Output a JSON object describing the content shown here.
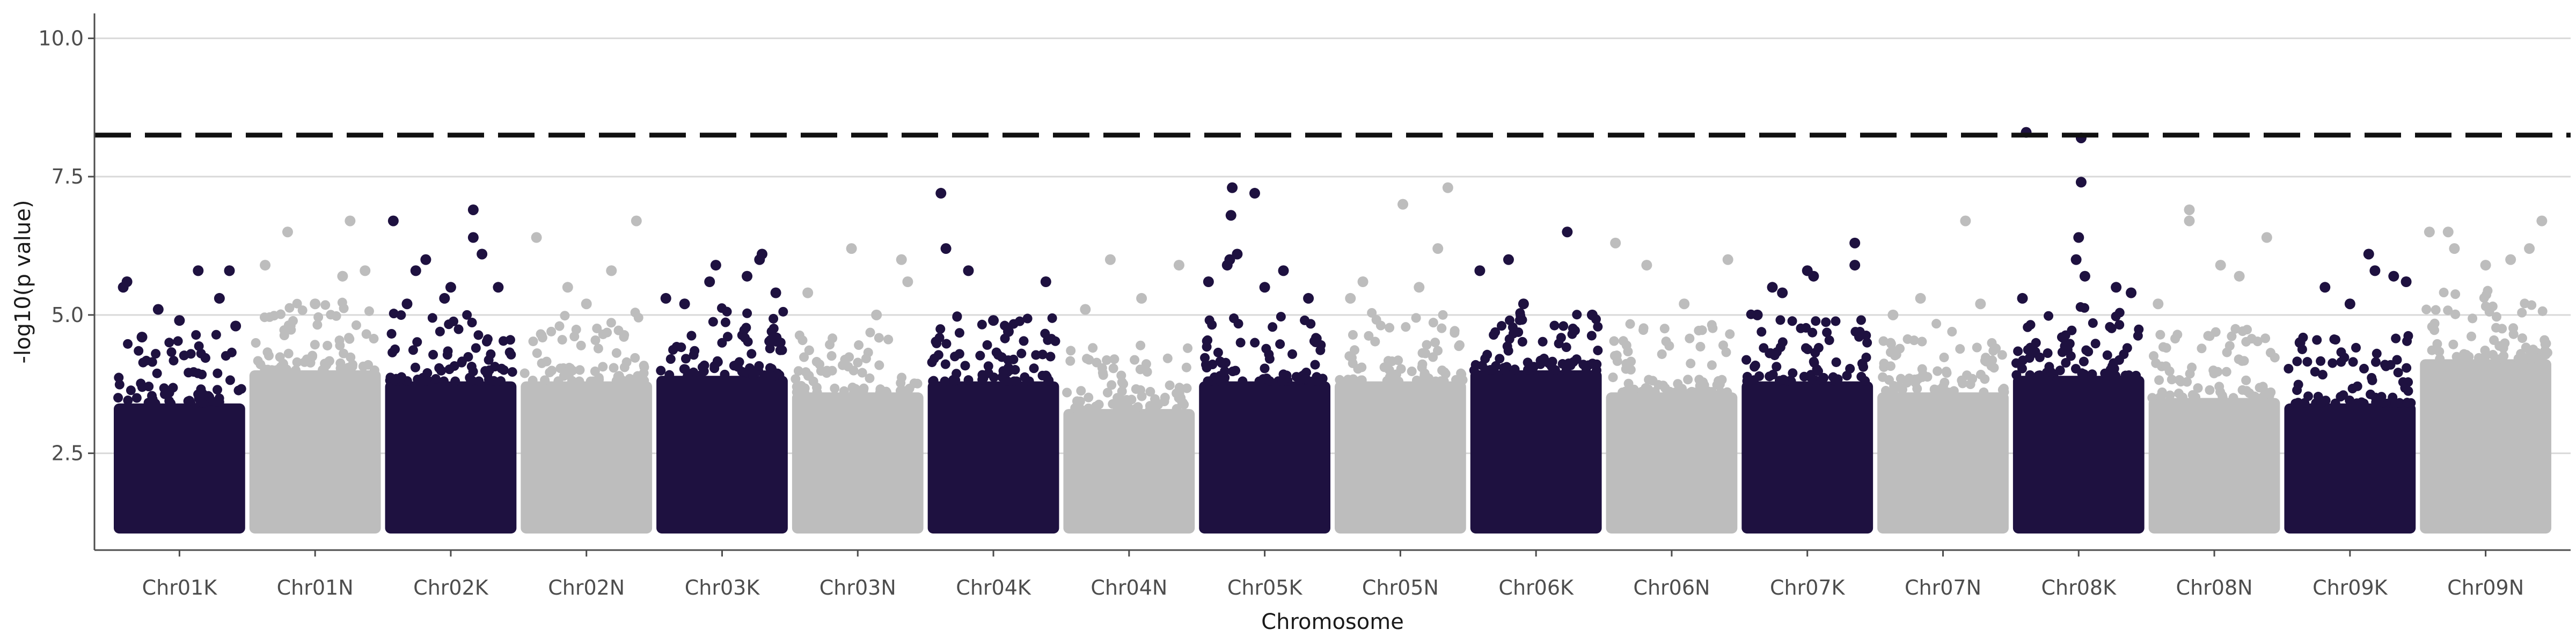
{
  "chart_data": {
    "type": "scatter",
    "subtype": "manhattan",
    "title": "",
    "xlabel": "Chromosome",
    "ylabel": "-log10(p value)",
    "ylim": [
      0.75,
      10.45
    ],
    "yticks": [
      2.5,
      5.0,
      7.5,
      10.0
    ],
    "ytick_labels": [
      "2.5",
      "5.0",
      "7.5",
      "10.0"
    ],
    "grid": "horizontal major",
    "legend": "none",
    "significance_threshold": 8.25,
    "colors": {
      "dark": "#1e1140",
      "light": "#bdbdbd",
      "threshold": "#111111",
      "grid": "#d9d9d9",
      "axis": "#4d4d4d"
    },
    "categories": [
      "Chr01K",
      "Chr01N",
      "Chr02K",
      "Chr02N",
      "Chr03K",
      "Chr03N",
      "Chr04K",
      "Chr04N",
      "Chr05K",
      "Chr05N",
      "Chr06K",
      "Chr06N",
      "Chr07K",
      "Chr07N",
      "Chr08K",
      "Chr08N",
      "Chr09K",
      "Chr09N"
    ],
    "series": [
      {
        "chromosome": "Chr01K",
        "color": "dark",
        "dense_top": 3.4,
        "outliers": [
          [
            0.05,
            5.5
          ],
          [
            0.08,
            5.6
          ],
          [
            0.2,
            4.6
          ],
          [
            0.33,
            5.1
          ],
          [
            0.5,
            4.9
          ],
          [
            0.65,
            5.8
          ],
          [
            0.82,
            5.3
          ],
          [
            0.9,
            5.8
          ],
          [
            0.95,
            4.8
          ]
        ]
      },
      {
        "chromosome": "Chr01N",
        "color": "light",
        "dense_top": 4.0,
        "outliers": [
          [
            0.1,
            5.9
          ],
          [
            0.28,
            6.5
          ],
          [
            0.5,
            5.2
          ],
          [
            0.72,
            5.7
          ],
          [
            0.78,
            6.7
          ],
          [
            0.9,
            5.8
          ]
        ]
      },
      {
        "chromosome": "Chr02K",
        "color": "dark",
        "dense_top": 3.8,
        "outliers": [
          [
            0.04,
            6.7
          ],
          [
            0.15,
            5.2
          ],
          [
            0.22,
            5.8
          ],
          [
            0.3,
            6.0
          ],
          [
            0.45,
            5.3
          ],
          [
            0.5,
            5.5
          ],
          [
            0.68,
            6.9
          ],
          [
            0.68,
            6.4
          ],
          [
            0.75,
            6.1
          ],
          [
            0.88,
            5.5
          ]
        ]
      },
      {
        "chromosome": "Chr02N",
        "color": "light",
        "dense_top": 3.8,
        "outliers": [
          [
            0.1,
            6.4
          ],
          [
            0.35,
            5.5
          ],
          [
            0.5,
            5.2
          ],
          [
            0.7,
            5.8
          ],
          [
            0.9,
            6.7
          ]
        ]
      },
      {
        "chromosome": "Chr03K",
        "color": "dark",
        "dense_top": 3.9,
        "outliers": [
          [
            0.05,
            5.3
          ],
          [
            0.2,
            5.2
          ],
          [
            0.4,
            5.6
          ],
          [
            0.45,
            5.9
          ],
          [
            0.7,
            5.7
          ],
          [
            0.8,
            6.0
          ],
          [
            0.82,
            6.1
          ],
          [
            0.93,
            5.4
          ]
        ]
      },
      {
        "chromosome": "Chr03N",
        "color": "light",
        "dense_top": 3.6,
        "outliers": [
          [
            0.1,
            5.4
          ],
          [
            0.45,
            6.2
          ],
          [
            0.65,
            5.0
          ],
          [
            0.85,
            6.0
          ],
          [
            0.9,
            5.6
          ]
        ]
      },
      {
        "chromosome": "Chr04K",
        "color": "dark",
        "dense_top": 3.8,
        "outliers": [
          [
            0.08,
            7.2
          ],
          [
            0.12,
            6.2
          ],
          [
            0.3,
            5.8
          ],
          [
            0.5,
            4.9
          ],
          [
            0.62,
            4.7
          ],
          [
            0.92,
            5.6
          ]
        ]
      },
      {
        "chromosome": "Chr04N",
        "color": "light",
        "dense_top": 3.3,
        "outliers": [
          [
            0.15,
            5.1
          ],
          [
            0.35,
            6.0
          ],
          [
            0.6,
            5.3
          ],
          [
            0.9,
            5.9
          ]
        ]
      },
      {
        "chromosome": "Chr05K",
        "color": "dark",
        "dense_top": 3.8,
        "outliers": [
          [
            0.05,
            5.6
          ],
          [
            0.2,
            5.9
          ],
          [
            0.22,
            6.0
          ],
          [
            0.23,
            6.8
          ],
          [
            0.24,
            7.3
          ],
          [
            0.28,
            6.1
          ],
          [
            0.42,
            7.2
          ],
          [
            0.5,
            5.5
          ],
          [
            0.65,
            5.8
          ],
          [
            0.85,
            5.3
          ]
        ]
      },
      {
        "chromosome": "Chr05N",
        "color": "light",
        "dense_top": 3.8,
        "outliers": [
          [
            0.1,
            5.3
          ],
          [
            0.2,
            5.6
          ],
          [
            0.52,
            7.0
          ],
          [
            0.65,
            5.5
          ],
          [
            0.8,
            6.2
          ],
          [
            0.88,
            7.3
          ]
        ]
      },
      {
        "chromosome": "Chr06K",
        "color": "dark",
        "dense_top": 4.0,
        "outliers": [
          [
            0.05,
            5.8
          ],
          [
            0.28,
            6.0
          ],
          [
            0.4,
            5.2
          ],
          [
            0.75,
            6.5
          ],
          [
            0.95,
            5.0
          ]
        ]
      },
      {
        "chromosome": "Chr06N",
        "color": "light",
        "dense_top": 3.6,
        "outliers": [
          [
            0.05,
            6.3
          ],
          [
            0.3,
            5.9
          ],
          [
            0.6,
            5.2
          ],
          [
            0.95,
            6.0
          ]
        ]
      },
      {
        "chromosome": "Chr07K",
        "color": "dark",
        "dense_top": 3.8,
        "outliers": [
          [
            0.1,
            5.0
          ],
          [
            0.22,
            5.5
          ],
          [
            0.3,
            5.4
          ],
          [
            0.5,
            5.8
          ],
          [
            0.55,
            5.7
          ],
          [
            0.88,
            6.3
          ],
          [
            0.88,
            5.9
          ]
        ]
      },
      {
        "chromosome": "Chr07N",
        "color": "light",
        "dense_top": 3.6,
        "outliers": [
          [
            0.1,
            5.0
          ],
          [
            0.32,
            5.3
          ],
          [
            0.68,
            6.7
          ],
          [
            0.8,
            5.2
          ]
        ]
      },
      {
        "chromosome": "Chr08K",
        "color": "dark",
        "dense_top": 3.9,
        "outliers": [
          [
            0.05,
            5.3
          ],
          [
            0.08,
            8.3
          ],
          [
            0.52,
            8.2
          ],
          [
            0.52,
            7.4
          ],
          [
            0.5,
            6.4
          ],
          [
            0.48,
            6.0
          ],
          [
            0.55,
            5.7
          ],
          [
            0.8,
            5.5
          ],
          [
            0.92,
            5.4
          ]
        ]
      },
      {
        "chromosome": "Chr08N",
        "color": "light",
        "dense_top": 3.5,
        "outliers": [
          [
            0.05,
            5.2
          ],
          [
            0.3,
            6.9
          ],
          [
            0.3,
            6.7
          ],
          [
            0.55,
            5.9
          ],
          [
            0.7,
            5.7
          ],
          [
            0.92,
            6.4
          ]
        ]
      },
      {
        "chromosome": "Chr09K",
        "color": "dark",
        "dense_top": 3.4,
        "outliers": [
          [
            0.1,
            4.5
          ],
          [
            0.3,
            5.5
          ],
          [
            0.5,
            5.2
          ],
          [
            0.65,
            6.1
          ],
          [
            0.7,
            5.8
          ],
          [
            0.85,
            5.7
          ],
          [
            0.95,
            5.6
          ]
        ]
      },
      {
        "chromosome": "Chr09N",
        "color": "light",
        "dense_top": 4.2,
        "outliers": [
          [
            0.05,
            6.5
          ],
          [
            0.2,
            6.5
          ],
          [
            0.25,
            6.2
          ],
          [
            0.5,
            5.9
          ],
          [
            0.7,
            6.0
          ],
          [
            0.85,
            6.2
          ],
          [
            0.95,
            6.7
          ]
        ]
      }
    ]
  }
}
